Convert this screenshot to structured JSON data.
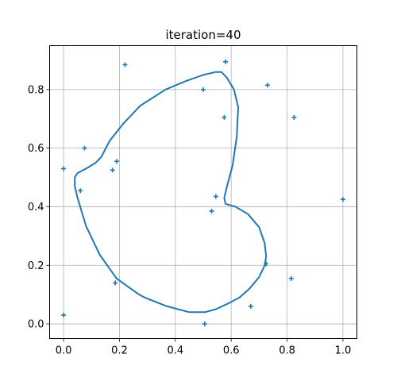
{
  "chart_data": {
    "type": "scatter",
    "title": "iteration=40",
    "xlabel": "",
    "ylabel": "",
    "xlim": [
      -0.05,
      1.05
    ],
    "ylim": [
      -0.05,
      0.95
    ],
    "xticks": [
      0.0,
      0.2,
      0.4,
      0.6,
      0.8,
      1.0
    ],
    "xtick_labels": [
      "0.0",
      "0.2",
      "0.4",
      "0.6",
      "0.8",
      "1.0"
    ],
    "yticks": [
      0.0,
      0.2,
      0.4,
      0.6,
      0.8
    ],
    "ytick_labels": [
      "0.0",
      "0.2",
      "0.4",
      "0.6",
      "0.8"
    ],
    "grid": true,
    "color": "#1f77b4",
    "points": {
      "marker": "+",
      "x": [
        0.0,
        0.0,
        0.06,
        0.075,
        0.175,
        0.185,
        0.19,
        0.22,
        0.5,
        0.505,
        0.53,
        0.545,
        0.575,
        0.58,
        0.67,
        0.725,
        0.73,
        0.815,
        0.825,
        1.0
      ],
      "y": [
        0.03,
        0.53,
        0.455,
        0.6,
        0.525,
        0.14,
        0.555,
        0.885,
        0.8,
        0.0,
        0.385,
        0.435,
        0.705,
        0.895,
        0.06,
        0.205,
        0.815,
        0.155,
        0.705,
        0.425
      ]
    },
    "curve": {
      "closed": true,
      "x": [
        0.04,
        0.05,
        0.08,
        0.115,
        0.135,
        0.165,
        0.215,
        0.275,
        0.365,
        0.44,
        0.5,
        0.545,
        0.565,
        0.585,
        0.61,
        0.625,
        0.62,
        0.605,
        0.585,
        0.575,
        0.58,
        0.615,
        0.66,
        0.7,
        0.72,
        0.725,
        0.72,
        0.7,
        0.665,
        0.63,
        0.59,
        0.545,
        0.505,
        0.45,
        0.37,
        0.29,
        0.27,
        0.19,
        0.13,
        0.08,
        0.05,
        0.04,
        0.04
      ],
      "y": [
        0.5,
        0.515,
        0.53,
        0.55,
        0.57,
        0.625,
        0.685,
        0.745,
        0.8,
        0.83,
        0.85,
        0.86,
        0.86,
        0.84,
        0.8,
        0.74,
        0.64,
        0.54,
        0.47,
        0.43,
        0.41,
        0.4,
        0.375,
        0.33,
        0.275,
        0.23,
        0.2,
        0.16,
        0.12,
        0.09,
        0.07,
        0.05,
        0.04,
        0.04,
        0.06,
        0.09,
        0.1,
        0.155,
        0.235,
        0.335,
        0.43,
        0.47,
        0.5
      ]
    }
  }
}
